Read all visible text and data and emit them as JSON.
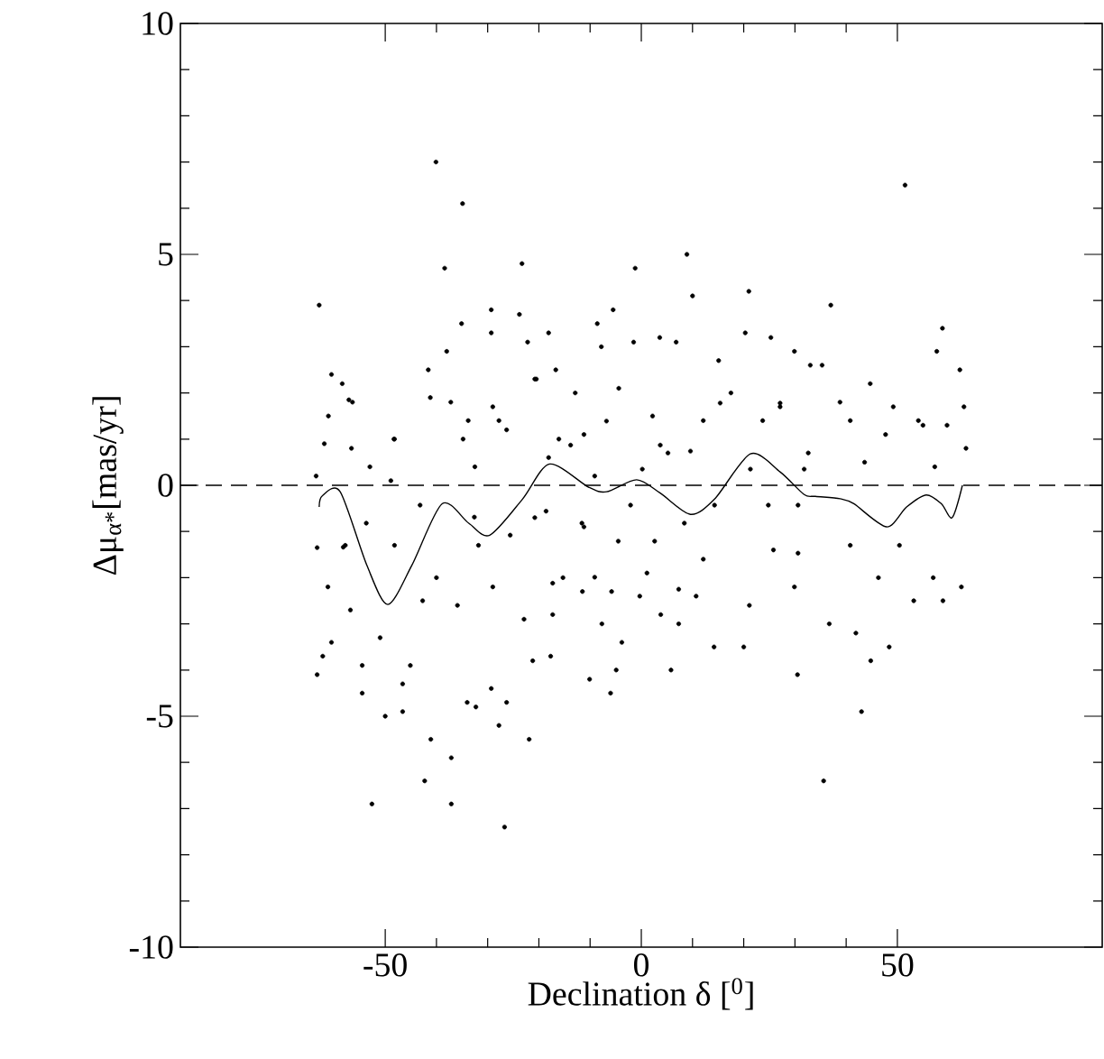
{
  "chart_data": {
    "type": "scatter",
    "xlabel": "Declination δ [$^{0}$]",
    "ylabel": "Δμ$_{α*}$[mas/yr]",
    "xlim": [
      -90,
      90
    ],
    "ylim": [
      -10,
      10
    ],
    "xticks": [
      -50,
      0,
      50
    ],
    "yticks": [
      -10,
      -5,
      0,
      5,
      10
    ],
    "ref_lines": [
      {
        "axis": "y",
        "value": 0,
        "color": "#000000",
        "line_style": "dashed"
      }
    ],
    "series": [
      {
        "marker": "circle",
        "color": "#000000",
        "x": [
          -62.9,
          -40.1,
          -34.9,
          -38.4,
          -23.3,
          -1.2,
          8.9,
          10.0,
          21.0,
          37.0,
          51.5,
          58.8,
          57.7,
          62.2,
          63.0,
          -60.5,
          -58.4,
          -56.4,
          -61.1,
          -61.9,
          -56.6,
          -48.2,
          -41.6,
          -41.2,
          -38.0,
          -35.1,
          -29.3,
          -29.3,
          -23.8,
          -22.2,
          -18.1,
          -8.6,
          -5.5,
          -7.8,
          -1.5,
          3.6,
          6.8,
          15.1,
          20.3,
          25.3,
          29.9,
          33.0,
          35.3,
          44.7,
          49.2,
          55.0,
          54.1,
          59.7,
          63.4,
          -16.7,
          -20.5,
          -12.9,
          -4.4,
          2.2,
          17.5,
          27.1,
          38.8,
          40.8,
          -29.0,
          -26.3,
          -33.8,
          5.2,
          12.1,
          23.7,
          -11.2,
          32.6,
          47.7,
          -18.1,
          -53.0,
          -48.9,
          -32.5,
          43.6,
          57.3,
          -63.3,
          -62.2,
          -60.5,
          -61.2,
          -56.8,
          -54.5,
          -54.5,
          -50.0,
          -52.6,
          -51.0,
          -46.6,
          -46.6,
          -45.1,
          -41.1,
          -42.3,
          -37.1,
          -37.1,
          -34.0,
          -32.3,
          -27.8,
          -26.7,
          -21.9,
          -26.3,
          -29.3,
          -21.2,
          -17.7,
          -10.1,
          -6.0,
          -4.9,
          -3.8,
          -7.7,
          5.8,
          14.2,
          20.0,
          30.5,
          35.6,
          43.0,
          44.8,
          48.4,
          36.7,
          41.9,
          21.1,
          7.3,
          3.8,
          -0.3,
          29.9,
          53.2,
          58.9,
          62.5,
          -42.7,
          -35.9,
          -29.0,
          -22.9,
          -17.3,
          -11.5,
          -5.8,
          10.7,
          46.3,
          57.0,
          40.8,
          50.4,
          25.8,
          12.1,
          1.1,
          -15.3,
          -11.2,
          -20.8,
          -31.8,
          -40.0,
          -48.2,
          -57.8,
          -63.3,
          -57.1,
          -63.5,
          -48.3,
          -37.2,
          -34.8,
          -27.8,
          -20.8,
          -16.1,
          -9.1,
          -2.1,
          -11.6,
          -18.6,
          -25.6,
          -32.6,
          -43.2,
          -53.7,
          -58.2,
          9.6,
          15.4,
          21.3,
          27.1,
          30.6,
          24.8,
          14.3,
          2.6,
          -4.5,
          3.7,
          0.2,
          -6.8,
          -13.8,
          8.4,
          7.3,
          -9.1,
          -17.3,
          30.6,
          31.8
        ],
        "values": [
          3.9,
          7.0,
          6.1,
          4.7,
          4.8,
          4.7,
          5.0,
          4.1,
          4.2,
          3.9,
          6.5,
          3.4,
          2.9,
          2.5,
          1.7,
          2.4,
          2.2,
          1.8,
          1.5,
          0.9,
          0.8,
          1.0,
          2.5,
          1.9,
          2.9,
          3.5,
          3.8,
          3.3,
          3.7,
          3.1,
          3.3,
          3.5,
          3.8,
          3.0,
          3.1,
          3.2,
          3.1,
          2.7,
          3.3,
          3.2,
          2.9,
          2.6,
          2.6,
          2.2,
          1.7,
          1.3,
          1.4,
          1.3,
          0.8,
          2.5,
          2.3,
          2.0,
          2.1,
          1.5,
          2.0,
          1.7,
          1.8,
          1.4,
          1.7,
          1.2,
          1.4,
          0.7,
          1.4,
          1.4,
          1.1,
          0.7,
          1.1,
          0.6,
          0.4,
          0.1,
          0.4,
          0.5,
          0.4,
          -4.1,
          -3.7,
          -3.4,
          -2.2,
          -2.7,
          -3.9,
          -4.5,
          -5.0,
          -6.9,
          -3.3,
          -4.9,
          -4.3,
          -3.9,
          -5.5,
          -6.4,
          -5.9,
          -6.9,
          -4.7,
          -4.8,
          -5.2,
          -7.4,
          -5.5,
          -4.7,
          -4.4,
          -3.8,
          -3.7,
          -4.2,
          -4.5,
          -4.0,
          -3.4,
          -3.0,
          -4.0,
          -3.5,
          -3.5,
          -4.1,
          -6.4,
          -4.9,
          -3.8,
          -3.5,
          -3.0,
          -3.2,
          -2.6,
          -3.0,
          -2.8,
          -2.4,
          -2.2,
          -2.5,
          -2.5,
          -2.2,
          -2.5,
          -2.6,
          -2.2,
          -2.9,
          -2.8,
          -2.3,
          -2.3,
          -2.4,
          -2.0,
          -2.0,
          -1.3,
          -1.3,
          -1.4,
          -1.6,
          -1.9,
          -2.0,
          -0.9,
          -0.7,
          -1.3,
          -2.0,
          -1.3,
          -1.3,
          -1.35,
          1.85,
          0.2,
          1.0,
          1.8,
          1.0,
          1.4,
          2.3,
          1.0,
          0.2,
          -0.43,
          -0.82,
          -0.56,
          -1.08,
          -0.69,
          -0.43,
          -0.82,
          -1.34,
          0.74,
          1.78,
          0.35,
          1.78,
          -1.47,
          -0.43,
          -0.43,
          -1.21,
          -1.21,
          0.87,
          0.35,
          1.39,
          0.87,
          -0.82,
          -2.25,
          -1.99,
          -2.12,
          -0.43,
          0.35
        ]
      },
      {
        "type": "line",
        "marker": "none",
        "line_style": "solid",
        "color": "#000000",
        "x": [
          -62.9,
          -62.3,
          -58.8,
          -53.6,
          -49.5,
          -44.8,
          -38.9,
          -33.7,
          -29.6,
          -23.2,
          -17.9,
          -10.3,
          -6.8,
          -0.9,
          3.7,
          9.6,
          14.3,
          21.3,
          27.1,
          31.8,
          34.0,
          38.8,
          41.5,
          47.9,
          51.8,
          55.6,
          58.6,
          60.7,
          62.7
        ],
        "values": [
          -0.47,
          -0.23,
          -0.14,
          -1.73,
          -2.58,
          -1.73,
          -0.4,
          -0.82,
          -1.08,
          -0.3,
          0.46,
          -0.04,
          -0.14,
          0.12,
          -0.17,
          -0.63,
          -0.3,
          0.68,
          0.29,
          -0.2,
          -0.24,
          -0.29,
          -0.4,
          -0.9,
          -0.47,
          -0.21,
          -0.4,
          -0.7,
          0.0
        ]
      }
    ]
  }
}
